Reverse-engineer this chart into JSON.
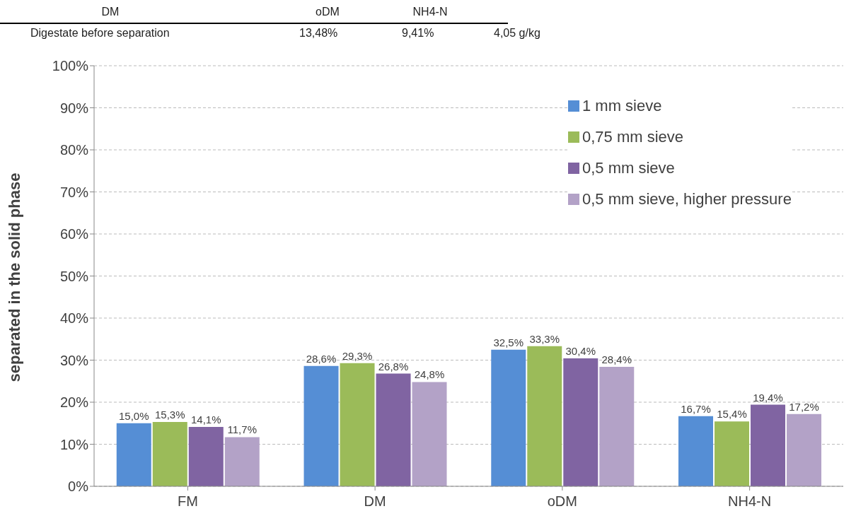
{
  "chart_data": {
    "type": "bar",
    "ylabel": "separated in the solid phase",
    "categories": [
      "FM",
      "DM",
      "oDM",
      "NH4-N"
    ],
    "series": [
      {
        "name": "1 mm sieve",
        "color": "#558ed5",
        "values": [
          15.0,
          28.6,
          32.5,
          16.7
        ],
        "value_labels": [
          "15,0%",
          "28,6%",
          "32,5%",
          "16,7%"
        ]
      },
      {
        "name": "0,75 mm sieve",
        "color": "#9bbb59",
        "values": [
          15.3,
          29.3,
          33.3,
          15.4
        ],
        "value_labels": [
          "15,3%",
          "29,3%",
          "33,3%",
          "15,4%"
        ]
      },
      {
        "name": "0,5 mm sieve",
        "color": "#8064a2",
        "values": [
          14.1,
          26.8,
          30.4,
          19.4
        ],
        "value_labels": [
          "14,1%",
          "26,8%",
          "30,4%",
          "19,4%"
        ]
      },
      {
        "name": "0,5 mm sieve, higher pressure",
        "color": "#b3a2c7",
        "values": [
          11.7,
          24.8,
          28.4,
          17.2
        ],
        "value_labels": [
          "11,7%",
          "24,8%",
          "28,4%",
          "17,2%"
        ]
      }
    ],
    "ylim": [
      0,
      100
    ],
    "yticks": [
      {
        "value": 0,
        "label": "0%"
      },
      {
        "value": 10,
        "label": "10%"
      },
      {
        "value": 20,
        "label": "20%"
      },
      {
        "value": 30,
        "label": "30%"
      },
      {
        "value": 40,
        "label": "40%"
      },
      {
        "value": 50,
        "label": "50%"
      },
      {
        "value": 60,
        "label": "60%"
      },
      {
        "value": 70,
        "label": "70%"
      },
      {
        "value": 80,
        "label": "80%"
      },
      {
        "value": 90,
        "label": "90%"
      },
      {
        "value": 100,
        "label": "100%"
      }
    ],
    "grid": "y",
    "legend": "top right",
    "annotations": [
      "DM",
      "oDM",
      "NH4-N",
      "Digestate before separation",
      "13,48%",
      "9,41%",
      "4,05 g/kg"
    ]
  }
}
